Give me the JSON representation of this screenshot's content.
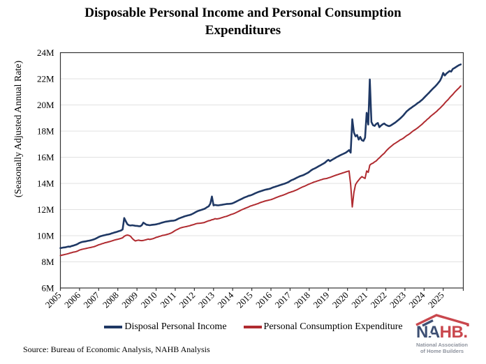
{
  "title": {
    "line1": "Disposable Personal Income and Personal Consumption",
    "line2": "Expenditures"
  },
  "y_axis": {
    "title": "(Seasonally Adjusted Annual Rate)"
  },
  "legend": {
    "series1": "Disposal Personal Income",
    "series2": "Personal Consumption Expenditure"
  },
  "source_note": "Source: Bureau of Economic Analysis, NAHB Analysis",
  "logo": {
    "word_na": "NA",
    "word_hb": "HB",
    "dot": ".",
    "tagline_line1": "National Association",
    "tagline_line2": "of Home Builders"
  },
  "colors": {
    "dpi_line": "#1f3864",
    "pce_line": "#b02b30",
    "grid": "#e2e2e2",
    "axis": "#333333",
    "logo_navy": "#3d4f73",
    "logo_red": "#c9474d",
    "logo_gray": "#8e939e"
  },
  "chart_data": {
    "type": "line",
    "title": "Disposable Personal Income and Personal Consumption Expenditures",
    "ylabel": "(Seasonally Adjusted Annual Rate)",
    "ylim": [
      6,
      24
    ],
    "xlim": [
      2005,
      2026.05
    ],
    "y_ticks": [
      6,
      8,
      10,
      12,
      14,
      16,
      18,
      20,
      22,
      24
    ],
    "y_tick_suffix": "M",
    "x_axis_ticks": [
      2005,
      2006,
      2007,
      2008,
      2009,
      2010,
      2011,
      2012,
      2013,
      2014,
      2015,
      2016,
      2017,
      2018,
      2019,
      2020,
      2021,
      2022,
      2023,
      2024,
      2025
    ],
    "x_start": 2005.0,
    "x_step": 0.083333,
    "series": [
      {
        "name": "Personal Consumption Expenditure",
        "color": "#b02b30",
        "stroke_width": 2.0,
        "values": [
          8.48,
          8.51,
          8.54,
          8.57,
          8.6,
          8.63,
          8.67,
          8.7,
          8.74,
          8.76,
          8.79,
          8.84,
          8.9,
          8.94,
          8.97,
          9.0,
          9.02,
          9.05,
          9.08,
          9.1,
          9.13,
          9.16,
          9.2,
          9.25,
          9.3,
          9.34,
          9.38,
          9.42,
          9.46,
          9.49,
          9.52,
          9.55,
          9.59,
          9.63,
          9.67,
          9.7,
          9.73,
          9.76,
          9.8,
          9.84,
          9.95,
          10.02,
          10.05,
          10.02,
          9.95,
          9.8,
          9.68,
          9.6,
          9.64,
          9.66,
          9.63,
          9.62,
          9.64,
          9.67,
          9.7,
          9.74,
          9.71,
          9.74,
          9.77,
          9.82,
          9.87,
          9.9,
          9.94,
          9.98,
          10.02,
          10.04,
          10.07,
          10.1,
          10.14,
          10.18,
          10.24,
          10.32,
          10.4,
          10.46,
          10.52,
          10.58,
          10.62,
          10.65,
          10.68,
          10.7,
          10.73,
          10.76,
          10.8,
          10.83,
          10.87,
          10.92,
          10.94,
          10.95,
          10.96,
          10.98,
          11.0,
          11.05,
          11.1,
          11.14,
          11.17,
          11.22,
          11.25,
          11.3,
          11.28,
          11.3,
          11.33,
          11.37,
          11.41,
          11.45,
          11.48,
          11.52,
          11.57,
          11.62,
          11.66,
          11.7,
          11.76,
          11.82,
          11.88,
          11.94,
          12.0,
          12.05,
          12.1,
          12.15,
          12.2,
          12.26,
          12.3,
          12.34,
          12.38,
          12.42,
          12.46,
          12.52,
          12.56,
          12.6,
          12.64,
          12.67,
          12.7,
          12.73,
          12.76,
          12.8,
          12.85,
          12.9,
          12.95,
          13.0,
          13.04,
          13.08,
          13.12,
          13.17,
          13.22,
          13.28,
          13.32,
          13.36,
          13.4,
          13.45,
          13.5,
          13.56,
          13.62,
          13.68,
          13.74,
          13.78,
          13.84,
          13.9,
          13.95,
          14.0,
          14.05,
          14.1,
          14.14,
          14.18,
          14.22,
          14.26,
          14.3,
          14.34,
          14.36,
          14.38,
          14.42,
          14.46,
          14.5,
          14.55,
          14.6,
          14.64,
          14.68,
          14.72,
          14.76,
          14.8,
          14.84,
          14.88,
          14.92,
          14.95,
          13.9,
          12.2,
          13.3,
          13.9,
          14.1,
          14.25,
          14.4,
          14.52,
          14.45,
          14.38,
          14.95,
          14.85,
          15.4,
          15.5,
          15.55,
          15.65,
          15.72,
          15.85,
          15.95,
          16.08,
          16.2,
          16.3,
          16.45,
          16.58,
          16.7,
          16.8,
          16.9,
          17.0,
          17.08,
          17.16,
          17.24,
          17.32,
          17.38,
          17.45,
          17.55,
          17.65,
          17.72,
          17.8,
          17.9,
          18.0,
          18.08,
          18.16,
          18.25,
          18.35,
          18.45,
          18.55,
          18.68,
          18.78,
          18.9,
          19.0,
          19.12,
          19.22,
          19.32,
          19.42,
          19.52,
          19.65,
          19.75,
          19.88,
          20.0,
          20.15,
          20.28,
          20.4,
          20.55,
          20.68,
          20.8,
          20.95,
          21.08,
          21.2,
          21.32,
          21.45
        ]
      },
      {
        "name": "Disposal Personal Income",
        "color": "#1f3864",
        "stroke_width": 2.6,
        "values": [
          9.05,
          9.07,
          9.1,
          9.11,
          9.14,
          9.17,
          9.16,
          9.21,
          9.24,
          9.28,
          9.32,
          9.38,
          9.45,
          9.5,
          9.53,
          9.55,
          9.57,
          9.6,
          9.62,
          9.65,
          9.68,
          9.72,
          9.77,
          9.83,
          9.9,
          9.95,
          9.99,
          10.02,
          10.05,
          10.08,
          10.1,
          10.13,
          10.17,
          10.21,
          10.25,
          10.28,
          10.32,
          10.36,
          10.4,
          10.48,
          11.35,
          11.1,
          10.88,
          10.8,
          10.78,
          10.8,
          10.78,
          10.76,
          10.75,
          10.73,
          10.72,
          10.8,
          11.0,
          10.92,
          10.84,
          10.82,
          10.8,
          10.82,
          10.84,
          10.85,
          10.87,
          10.9,
          10.93,
          10.97,
          11.01,
          11.04,
          11.07,
          11.09,
          11.11,
          11.13,
          11.14,
          11.15,
          11.18,
          11.24,
          11.3,
          11.35,
          11.4,
          11.44,
          11.49,
          11.52,
          11.55,
          11.58,
          11.62,
          11.68,
          11.75,
          11.82,
          11.88,
          11.92,
          11.96,
          12.0,
          12.04,
          12.1,
          12.18,
          12.25,
          12.45,
          13.0,
          12.32,
          12.35,
          12.33,
          12.32,
          12.34,
          12.36,
          12.38,
          12.4,
          12.42,
          12.43,
          12.44,
          12.45,
          12.48,
          12.54,
          12.6,
          12.66,
          12.72,
          12.78,
          12.84,
          12.9,
          12.95,
          13.0,
          13.05,
          13.08,
          13.12,
          13.18,
          13.24,
          13.29,
          13.34,
          13.38,
          13.42,
          13.46,
          13.5,
          13.53,
          13.56,
          13.58,
          13.62,
          13.68,
          13.72,
          13.76,
          13.8,
          13.84,
          13.88,
          13.92,
          13.96,
          14.0,
          14.05,
          14.1,
          14.18,
          14.25,
          14.3,
          14.36,
          14.42,
          14.48,
          14.54,
          14.58,
          14.62,
          14.68,
          14.74,
          14.8,
          14.88,
          14.98,
          15.06,
          15.12,
          15.18,
          15.25,
          15.32,
          15.38,
          15.45,
          15.52,
          15.6,
          15.72,
          15.8,
          15.7,
          15.78,
          15.85,
          15.92,
          16.0,
          16.06,
          16.12,
          16.18,
          16.24,
          16.3,
          16.36,
          16.45,
          16.55,
          16.35,
          18.9,
          17.9,
          17.6,
          17.7,
          17.35,
          17.55,
          17.3,
          17.25,
          17.5,
          19.4,
          18.5,
          21.95,
          18.7,
          18.45,
          18.4,
          18.55,
          18.62,
          18.3,
          18.42,
          18.52,
          18.58,
          18.48,
          18.42,
          18.38,
          18.42,
          18.5,
          18.58,
          18.66,
          18.76,
          18.86,
          18.96,
          19.08,
          19.2,
          19.35,
          19.5,
          19.6,
          19.7,
          19.78,
          19.88,
          19.95,
          20.05,
          20.15,
          20.22,
          20.32,
          20.42,
          20.55,
          20.68,
          20.8,
          20.92,
          21.05,
          21.18,
          21.3,
          21.42,
          21.55,
          21.7,
          21.85,
          22.1,
          22.45,
          22.25,
          22.4,
          22.5,
          22.6,
          22.55,
          22.75,
          22.82,
          22.9,
          22.98,
          23.05,
          23.1
        ]
      }
    ]
  }
}
